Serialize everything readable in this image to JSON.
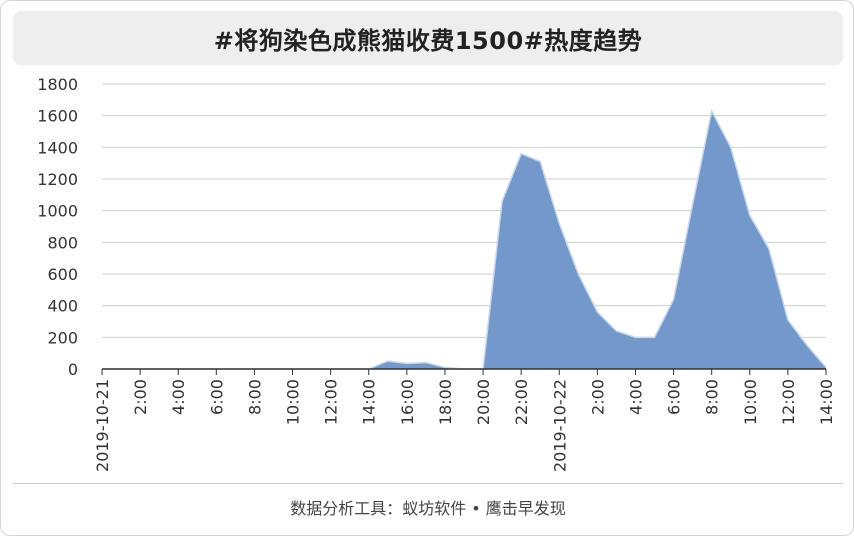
{
  "title": "#将狗染色成熊猫收费1500#热度趋势",
  "footer": "数据分析工具：蚁坊软件 • 鹰击早发现",
  "colors": {
    "area_fill": "#7399cb",
    "area_stroke": "#c9d8ee",
    "grid": "#d0d0d0",
    "axis": "#333333"
  },
  "chart_data": {
    "type": "area",
    "title": "#将狗染色成熊猫收费1500#热度趋势",
    "xlabel": "",
    "ylabel": "",
    "ylim": [
      0,
      1800
    ],
    "y_ticks": [
      0,
      200,
      400,
      600,
      800,
      1000,
      1200,
      1400,
      1600,
      1800
    ],
    "grid": true,
    "legend": "none",
    "x": [
      "2019-10-21 00:00",
      "01:00",
      "02:00",
      "03:00",
      "04:00",
      "05:00",
      "06:00",
      "07:00",
      "08:00",
      "09:00",
      "10:00",
      "11:00",
      "12:00",
      "13:00",
      "14:00",
      "15:00",
      "16:00",
      "17:00",
      "18:00",
      "19:00",
      "20:00",
      "21:00",
      "22:00",
      "23:00",
      "2019-10-22 00:00",
      "01:00",
      "02:00",
      "03:00",
      "04:00",
      "05:00",
      "06:00",
      "07:00",
      "08:00",
      "09:00",
      "10:00",
      "11:00",
      "12:00",
      "13:00",
      "14:00"
    ],
    "x_tick_labels": [
      "2019-10-21",
      "2:00",
      "4:00",
      "6:00",
      "8:00",
      "10:00",
      "12:00",
      "14:00",
      "16:00",
      "18:00",
      "20:00",
      "22:00",
      "2019-10-22",
      "2:00",
      "4:00",
      "6:00",
      "8:00",
      "10:00",
      "12:00",
      "14:00"
    ],
    "series": [
      {
        "values": [
          0,
          0,
          0,
          0,
          0,
          0,
          0,
          0,
          0,
          0,
          0,
          0,
          0,
          0,
          0,
          50,
          35,
          40,
          10,
          0,
          0,
          1060,
          1360,
          1310,
          920,
          600,
          360,
          240,
          200,
          200,
          440,
          1040,
          1630,
          1400,
          970,
          760,
          310,
          150,
          10
        ]
      }
    ]
  }
}
